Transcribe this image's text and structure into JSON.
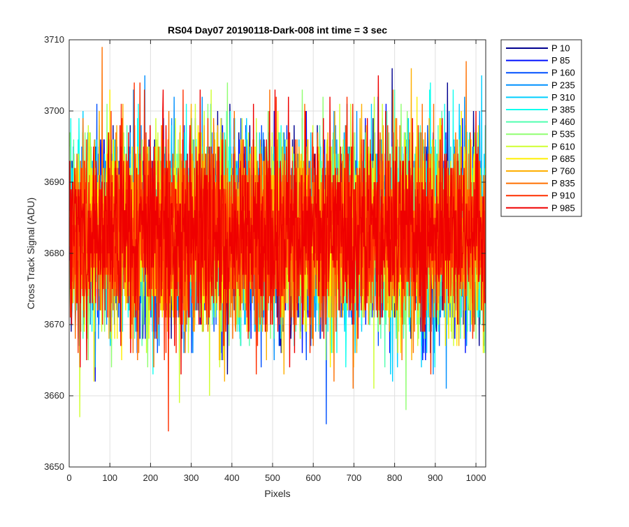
{
  "chart_data": {
    "type": "line",
    "title": "RS04 Day07 20190118-Dark-008 int time = 3 sec",
    "xlabel": "Pixels",
    "ylabel": "Cross Track Signal (ADU)",
    "xlim": [
      0,
      1024
    ],
    "ylim": [
      3650,
      3710
    ],
    "xticks": [
      0,
      100,
      200,
      300,
      400,
      500,
      600,
      700,
      800,
      900,
      1000
    ],
    "yticks": [
      3650,
      3660,
      3670,
      3680,
      3690,
      3700,
      3710
    ],
    "grid": true,
    "legend_position": "outside-top-right",
    "n_points": 1024,
    "series_mean": 3683,
    "series_observed_range": [
      3655,
      3710
    ],
    "series": [
      {
        "name": "P 10",
        "color": "#00008f"
      },
      {
        "name": "P 85",
        "color": "#0010ff"
      },
      {
        "name": "P 160",
        "color": "#0050ff"
      },
      {
        "name": "P 235",
        "color": "#0090ff"
      },
      {
        "name": "P 310",
        "color": "#00cfff"
      },
      {
        "name": "P 385",
        "color": "#10ffef"
      },
      {
        "name": "P 460",
        "color": "#50ffaf"
      },
      {
        "name": "P 535",
        "color": "#8fff70"
      },
      {
        "name": "P 610",
        "color": "#cfff30"
      },
      {
        "name": "P 685",
        "color": "#ffef00"
      },
      {
        "name": "P 760",
        "color": "#ffaf00"
      },
      {
        "name": "P 835",
        "color": "#ff7000"
      },
      {
        "name": "P 910",
        "color": "#ff3000"
      },
      {
        "name": "P 985",
        "color": "#ef0000"
      }
    ]
  }
}
